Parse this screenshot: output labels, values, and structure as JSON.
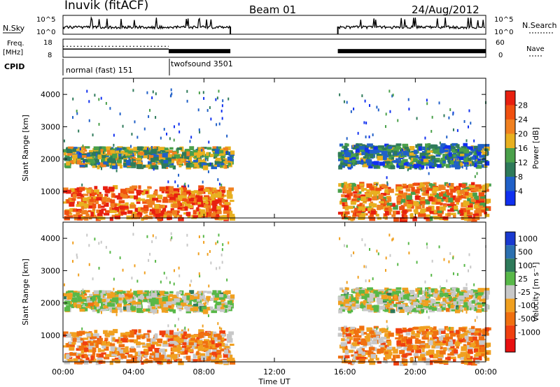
{
  "header": {
    "station": "Inuvik (fitACF)",
    "beam": "Beam 01",
    "date": "24/Aug/2012"
  },
  "panels": {
    "nsky_label": "N.Sky",
    "nsearch_label": "N.Search",
    "freq_label": "Freq.",
    "freq_unit": "[MHz]",
    "nave_label": "Nave",
    "cpid_label": "CPID",
    "nsky_ticks": [
      "10^5",
      "10^0"
    ],
    "nsearch_ticks": [
      "10^5",
      "10^0"
    ],
    "freq_ticks": [
      "18",
      "8"
    ],
    "nave_ticks": [
      "60",
      "0"
    ],
    "cpid_modes": [
      {
        "label": "normal (fast) 151",
        "start_hr": 0.0,
        "end_hr": 6.0
      },
      {
        "label": "twofsound 3501",
        "start_hr": 6.0,
        "end_hr": 24.0
      }
    ]
  },
  "colorbars": {
    "power": {
      "title": "Power [dB]",
      "ticks": [
        "4",
        "8",
        "12",
        "16",
        "20",
        "24",
        "28"
      ],
      "colors": [
        "#1030f0",
        "#2060c8",
        "#2e7a5a",
        "#4aa04a",
        "#e8b020",
        "#f08020",
        "#f05010",
        "#e82010"
      ]
    },
    "velocity": {
      "title": "Velocity [m s⁻¹]",
      "ticks": [
        "1000",
        "500",
        "100",
        "25",
        "-25",
        "-100",
        "-500",
        "-1000"
      ],
      "colors": [
        "#1a3ad0",
        "#2c70b0",
        "#2e7a5a",
        "#58b848",
        "#c8c8c8",
        "#f0a020",
        "#f07010",
        "#f04010",
        "#e81010"
      ]
    }
  },
  "axes": {
    "ylabel": "Slant Range [km]",
    "yticks": [
      "1000",
      "2000",
      "3000",
      "4000"
    ],
    "xticks": [
      "00:00",
      "04:00",
      "08:00",
      "12:00",
      "16:00",
      "20:00",
      "00:00"
    ],
    "xlabel": "Time UT"
  },
  "chart_data": {
    "type": "heatmap",
    "title": "Inuvik (fitACF) Beam 01 24/Aug/2012",
    "xlabel": "Time UT",
    "ylabel": "Slant Range [km]",
    "xlim_hours": [
      0,
      24
    ],
    "ylim_km": [
      180,
      4500
    ],
    "data_gap_hours": [
      9.5,
      15.6
    ],
    "power_db_range": [
      0,
      32
    ],
    "velocity_range": [
      -1000,
      1000
    ],
    "frequency_mhz": {
      "normal_fast_151": 12.5,
      "twofsound_3501": 11.0
    },
    "scatter_regions": [
      {
        "t_start": 0.0,
        "t_end": 9.5,
        "r_min": 200,
        "r_max": 1200,
        "power_db": 24,
        "velocity": -300
      },
      {
        "t_start": 0.0,
        "t_end": 9.5,
        "r_min": 1800,
        "r_max": 2400,
        "power_db": 14,
        "velocity": 0
      },
      {
        "t_start": 15.6,
        "t_end": 24.0,
        "r_min": 200,
        "r_max": 1300,
        "power_db": 22,
        "velocity": -300
      },
      {
        "t_start": 15.6,
        "t_end": 24.0,
        "r_min": 1800,
        "r_max": 2500,
        "power_db": 10,
        "velocity": 0
      }
    ]
  }
}
